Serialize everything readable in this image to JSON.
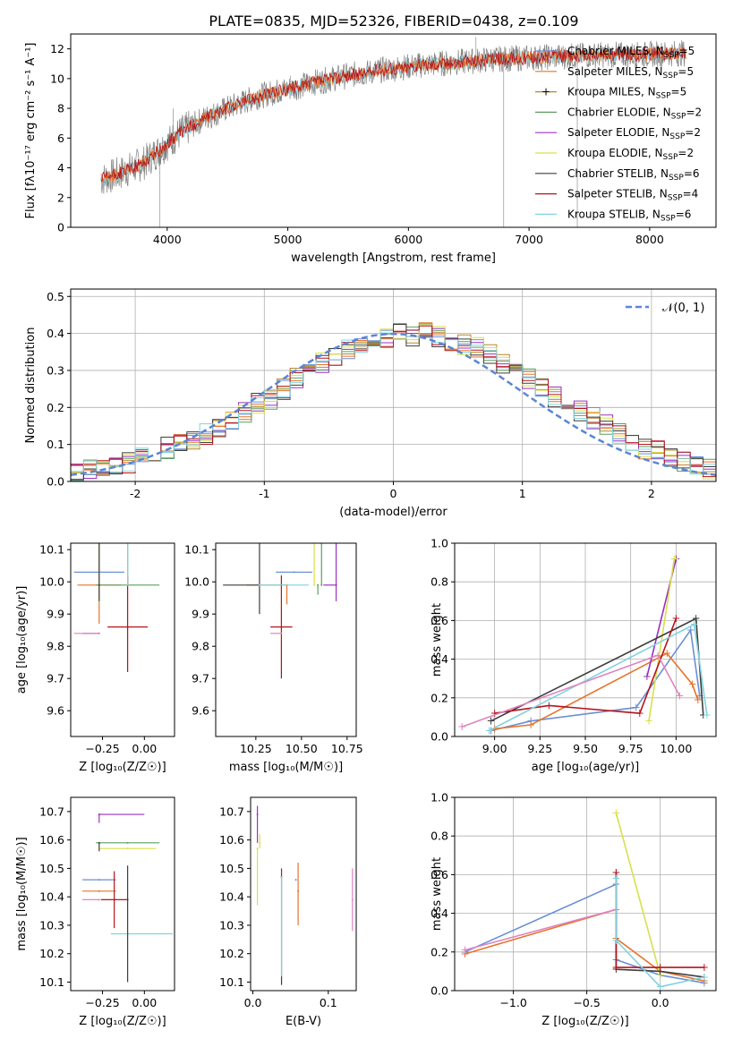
{
  "figure": {
    "title": "PLATE=0835, MJD=52326, FIBERID=0438, z=0.109"
  },
  "series_styles": [
    {
      "name": "Chabrier MILES",
      "nssp": "5",
      "color": "#6a8fd6"
    },
    {
      "name": "Salpeter MILES",
      "nssp": "5",
      "color": "#e7742a"
    },
    {
      "name": "Kroupa MILES",
      "nssp": "5",
      "color": "#b8862b"
    },
    {
      "name": "Chabrier ELODIE",
      "nssp": "2",
      "color": "#5f9e5f"
    },
    {
      "name": "Salpeter ELODIE",
      "nssp": "2",
      "color": "#9b30c0"
    },
    {
      "name": "Kroupa ELODIE",
      "nssp": "2",
      "color": "#d8e04a"
    },
    {
      "name": "Chabrier STELIB",
      "nssp": "6",
      "color": "#3e3e3e"
    },
    {
      "name": "Salpeter STELIB",
      "nssp": "4",
      "color": "#b5141c"
    },
    {
      "name": "Kroupa STELIB",
      "nssp": "6",
      "color": "#7fd3e0"
    }
  ],
  "chart_data": [
    {
      "id": "spectrum",
      "type": "line",
      "xlabel": "wavelength [Angstrom, rest frame]",
      "ylabel": "Flux [fλ10⁻¹⁷ erg cm⁻² s⁻¹ A⁻¹]",
      "xlim": [
        3200,
        8550
      ],
      "ylim": [
        0,
        13
      ],
      "xticks": [
        4000,
        5000,
        6000,
        7000,
        8000
      ],
      "yticks": [
        0,
        2,
        4,
        6,
        8,
        10,
        12
      ],
      "data_color": "#808080",
      "continuum": {
        "x": [
          3450,
          3600,
          3800,
          3950,
          4100,
          4300,
          4500,
          4750,
          5000,
          5250,
          5500,
          5800,
          6100,
          6400,
          6700,
          7000,
          7300,
          7600,
          7900,
          8200,
          8300
        ],
        "y": [
          3.2,
          3.6,
          4.3,
          5.3,
          6.3,
          7.3,
          8.0,
          8.8,
          9.3,
          9.8,
          10.2,
          10.6,
          10.9,
          11.1,
          11.3,
          11.4,
          11.5,
          11.6,
          11.6,
          11.7,
          11.7
        ]
      },
      "legend": "upper-right"
    },
    {
      "id": "residuals",
      "type": "line",
      "xlabel": "(data-model)/error",
      "ylabel": "Normed distribution",
      "xlim": [
        -2.5,
        2.5
      ],
      "ylim": [
        0,
        0.52
      ],
      "xticks": [
        -2,
        -1,
        0,
        1,
        2
      ],
      "yticks": [
        0.0,
        0.1,
        0.2,
        0.3,
        0.4,
        0.5
      ],
      "gaussian_label": "𝒩(0, 1)",
      "grid": true,
      "hist_base": [
        0.02,
        0.03,
        0.04,
        0.04,
        0.05,
        0.06,
        0.07,
        0.09,
        0.1,
        0.11,
        0.13,
        0.15,
        0.17,
        0.19,
        0.21,
        0.22,
        0.25,
        0.28,
        0.3,
        0.32,
        0.34,
        0.36,
        0.37,
        0.38,
        0.39,
        0.4,
        0.39,
        0.4,
        0.39,
        0.38,
        0.37,
        0.36,
        0.34,
        0.32,
        0.3,
        0.28,
        0.25,
        0.23,
        0.21,
        0.19,
        0.17,
        0.15,
        0.13,
        0.11,
        0.09,
        0.08,
        0.06,
        0.05,
        0.04,
        0.03
      ]
    },
    {
      "id": "age-vs-Z",
      "type": "scatter",
      "xlabel": "Z [log₁₀(Z/Z☉)]",
      "ylabel": "age  [log₁₀(age/yr)]",
      "xlim": [
        -0.44,
        0.18
      ],
      "ylim": [
        9.52,
        10.12
      ],
      "xticks": [
        -0.25,
        0.0
      ],
      "xticklabels": [
        "−0.25",
        "0.00"
      ],
      "yticks": [
        9.6,
        9.7,
        9.8,
        9.9,
        10.0,
        10.1
      ],
      "points": [
        {
          "x": -0.27,
          "y": 10.03,
          "xe": [
            0.15,
            0.15
          ],
          "ye": [
            0.07,
            0.07
          ],
          "c": 0
        },
        {
          "x": -0.27,
          "y": 9.99,
          "xe": [
            0.13,
            0.13
          ],
          "ye": [
            0.12,
            0.33
          ],
          "c": 1
        },
        {
          "x": -0.27,
          "y": 9.99,
          "xe": [
            0.0,
            0.0
          ],
          "ye": [
            0.05,
            0.3
          ],
          "c": 2
        },
        {
          "x": -0.1,
          "y": 9.99,
          "xe": [
            0.19,
            0.19
          ],
          "ye": [
            0.0,
            0.4
          ],
          "c": 3
        },
        {
          "x": -0.27,
          "y": 9.84,
          "xe": [
            0.1,
            0.0
          ],
          "ye": [
            0.0,
            0.0
          ],
          "c": 4
        },
        {
          "x": -0.27,
          "y": 9.99,
          "xe": [
            0.0,
            0.0
          ],
          "ye": [
            0.05,
            0.3
          ],
          "c": 5
        },
        {
          "x": -0.27,
          "y": 9.99,
          "xe": [
            0.0,
            0.0
          ],
          "ye": [
            0.05,
            0.35
          ],
          "c": 6
        },
        {
          "x": -0.1,
          "y": 9.86,
          "xe": [
            0.12,
            0.12
          ],
          "ye": [
            0.14,
            0.16
          ],
          "c": 7
        },
        {
          "x": -0.1,
          "y": 9.99,
          "xe": [
            0.0,
            0.0
          ],
          "ye": [
            0.0,
            0.43
          ],
          "c": 8
        },
        {
          "x": -0.27,
          "y": 9.84,
          "xe": [
            0.15,
            0.0
          ],
          "ye": [
            0.0,
            0.0
          ],
          "c": 4,
          "c_override": "#e083c0"
        }
      ]
    },
    {
      "id": "age-vs-mass",
      "type": "scatter",
      "xlabel": "mass [log₁₀(M/M☉)]",
      "xlim": [
        10.03,
        10.8
      ],
      "ylim": [
        9.52,
        10.12
      ],
      "xticks": [
        10.25,
        10.5,
        10.75
      ],
      "xticklabels": [
        "10.25",
        "10.50",
        "10.75"
      ],
      "yticks": [
        9.6,
        9.7,
        9.8,
        9.9,
        10.0,
        10.1
      ],
      "points": [
        {
          "x": 10.46,
          "y": 10.03,
          "xe": [
            0.1,
            0.1
          ],
          "ye": [
            0.0,
            0.0
          ],
          "c": 0
        },
        {
          "x": 10.42,
          "y": 9.99,
          "xe": [
            0.22,
            0.0
          ],
          "ye": [
            0.06,
            0.0
          ],
          "c": 1
        },
        {
          "x": 10.69,
          "y": 9.99,
          "xe": [
            0.0,
            0.0
          ],
          "ye": [
            0.0,
            0.0
          ],
          "c": 2
        },
        {
          "x": 10.59,
          "y": 9.99,
          "xe": [
            0.0,
            0.0
          ],
          "ye": [
            0.03,
            0.0
          ],
          "c": 3
        },
        {
          "x": 10.69,
          "y": 9.99,
          "xe": [
            0.07,
            0.0
          ],
          "ye": [
            0.05,
            0.29
          ],
          "c": 4
        },
        {
          "x": 10.57,
          "y": 9.99,
          "xe": [
            0.0,
            0.0
          ],
          "ye": [
            0.0,
            0.32
          ],
          "c": 5
        },
        {
          "x": 10.27,
          "y": 9.99,
          "xe": [
            0.2,
            0.0
          ],
          "ye": [
            0.09,
            0.45
          ],
          "c": 6
        },
        {
          "x": 10.39,
          "y": 9.86,
          "xe": [
            0.06,
            0.06
          ],
          "ye": [
            0.16,
            0.16
          ],
          "c": 7
        },
        {
          "x": 10.27,
          "y": 9.99,
          "xe": [
            0.0,
            0.27
          ],
          "ye": [
            0.0,
            0.0
          ],
          "c": 8
        },
        {
          "x": 10.39,
          "y": 9.84,
          "xe": [
            0.06,
            0.0
          ],
          "ye": [
            0.0,
            0.0
          ],
          "c": 4,
          "c_override": "#e083c0"
        },
        {
          "x": 10.61,
          "y": 9.99,
          "xe": [
            0.0,
            0.0
          ],
          "ye": [
            0.0,
            0.35
          ],
          "c": 3
        }
      ]
    },
    {
      "id": "mass-weight-vs-age",
      "type": "line",
      "xlabel": "age  [log₁₀(age/yr)]",
      "ylabel": "mass weight",
      "xlim": [
        8.78,
        10.22
      ],
      "ylim": [
        0,
        1
      ],
      "xticks": [
        9.0,
        9.25,
        9.5,
        9.75,
        10.0
      ],
      "xticklabels": [
        "9.00",
        "9.25",
        "9.50",
        "9.75",
        "10.00"
      ],
      "yticks": [
        0.0,
        0.2,
        0.4,
        0.6,
        0.8,
        1.0
      ],
      "grid": true,
      "lines": [
        {
          "c": 0,
          "x": [
            8.98,
            9.2,
            9.78,
            10.08,
            10.13
          ],
          "y": [
            0.03,
            0.08,
            0.15,
            0.55,
            0.21
          ]
        },
        {
          "c": 1,
          "x": [
            9.0,
            9.2,
            9.95,
            10.09,
            10.12
          ],
          "y": [
            0.04,
            0.06,
            0.43,
            0.27,
            0.19
          ]
        },
        {
          "c": 4,
          "x": [
            9.84,
            10.0
          ],
          "y": [
            0.31,
            0.92
          ]
        },
        {
          "c": 5,
          "x": [
            9.85,
            9.99
          ],
          "y": [
            0.08,
            0.92
          ]
        },
        {
          "c": 6,
          "x": [
            8.98,
            10.11,
            10.15
          ],
          "y": [
            0.08,
            0.61,
            0.11
          ]
        },
        {
          "c": 7,
          "x": [
            9.0,
            9.3,
            9.8,
            10.0
          ],
          "y": [
            0.12,
            0.16,
            0.12,
            0.61
          ]
        },
        {
          "c": 8,
          "x": [
            8.97,
            10.1,
            10.17
          ],
          "y": [
            0.03,
            0.58,
            0.11
          ]
        },
        {
          "c": 4,
          "c_override": "#e083c0",
          "x": [
            8.82,
            9.9,
            10.02
          ],
          "y": [
            0.05,
            0.42,
            0.21
          ]
        }
      ]
    },
    {
      "id": "mass-vs-Z",
      "type": "scatter",
      "xlabel": "Z [log₁₀(Z/Z☉)]",
      "ylabel": "mass [log₁₀(M/M☉)]",
      "xlim": [
        -0.44,
        0.18
      ],
      "ylim": [
        10.07,
        10.75
      ],
      "xticks": [
        -0.25,
        0.0
      ],
      "xticklabels": [
        "−0.25",
        "0.00"
      ],
      "yticks": [
        10.1,
        10.2,
        10.3,
        10.4,
        10.5,
        10.6,
        10.7
      ],
      "points": [
        {
          "x": -0.27,
          "y": 10.46,
          "xe": [
            0.1,
            0.1
          ],
          "ye": [
            0.0,
            0.0
          ],
          "c": 0
        },
        {
          "x": -0.27,
          "y": 10.42,
          "xe": [
            0.1,
            0.1
          ],
          "ye": [
            0.0,
            0.0
          ],
          "c": 1
        },
        {
          "x": -0.27,
          "y": 10.69,
          "xe": [
            0.0,
            0.0
          ],
          "ye": [
            0.0,
            0.0
          ],
          "c": 2
        },
        {
          "x": -0.1,
          "y": 10.59,
          "xe": [
            0.19,
            0.19
          ],
          "ye": [
            0.0,
            0.0
          ],
          "c": 3
        },
        {
          "x": -0.27,
          "y": 10.69,
          "xe": [
            0.0,
            0.27
          ],
          "ye": [
            0.03,
            0.0
          ],
          "c": 4
        },
        {
          "x": -0.1,
          "y": 10.57,
          "xe": [
            0.17,
            0.17
          ],
          "ye": [
            0.0,
            0.0
          ],
          "c": 5
        },
        {
          "x": -0.27,
          "y": 10.59,
          "xe": [
            0.0,
            0.0
          ],
          "ye": [
            0.03,
            0.0
          ],
          "c": 6
        },
        {
          "x": -0.18,
          "y": 10.39,
          "xe": [
            0.08,
            0.08
          ],
          "ye": [
            0.1,
            0.1
          ],
          "c": 7
        },
        {
          "x": -0.1,
          "y": 10.27,
          "xe": [
            0.1,
            0.27
          ],
          "ye": [
            0.0,
            0.0
          ],
          "c": 8
        },
        {
          "x": -0.27,
          "y": 10.39,
          "xe": [
            0.1,
            0.0
          ],
          "ye": [
            0.0,
            0.0
          ],
          "c": 4,
          "c_override": "#e083c0"
        },
        {
          "x": -0.1,
          "y": 10.39,
          "xe": [
            0.0,
            0.0
          ],
          "ye": [
            0.29,
            0.12
          ],
          "c": 6
        }
      ]
    },
    {
      "id": "mass-vs-ebv",
      "type": "scatter",
      "xlabel": "E(B-V)",
      "xlim": [
        -0.003,
        0.137
      ],
      "ylim": [
        10.07,
        10.75
      ],
      "xticks": [
        0.0,
        0.1
      ],
      "xticklabels": [
        "0.0",
        "0.1"
      ],
      "yticks": [
        10.1,
        10.2,
        10.3,
        10.4,
        10.5,
        10.6,
        10.7
      ],
      "points": [
        {
          "x": 0.057,
          "y": 10.46,
          "ye": [
            0.0,
            0.0
          ],
          "c": 0
        },
        {
          "x": 0.06,
          "y": 10.42,
          "ye": [
            0.12,
            0.1
          ],
          "c": 1
        },
        {
          "x": 0.006,
          "y": 10.69,
          "ye": [
            0.1,
            0.03
          ],
          "c": 4
        },
        {
          "x": 0.006,
          "y": 10.57,
          "ye": [
            0.2,
            0.0
          ],
          "c": 5
        },
        {
          "x": 0.038,
          "y": 10.47,
          "ye": [
            0.38,
            0.0
          ],
          "c": 6
        },
        {
          "x": 0.038,
          "y": 10.47,
          "ye": [
            0.0,
            0.03
          ],
          "c": 7
        },
        {
          "x": 0.038,
          "y": 10.47,
          "ye": [
            0.35,
            0.0
          ],
          "c": 8
        },
        {
          "x": 0.132,
          "y": 10.39,
          "ye": [
            0.11,
            0.11
          ],
          "c": 4,
          "c_override": "#e083c0"
        },
        {
          "x": 0.009,
          "y": 10.59,
          "ye": [
            0.02,
            0.03
          ],
          "c": 5
        }
      ]
    },
    {
      "id": "mass-weight-vs-Z",
      "type": "line",
      "xlabel": "Z [log₁₀(Z/Z☉)]",
      "ylabel": "mass weight",
      "xlim": [
        -1.4,
        0.38
      ],
      "ylim": [
        0,
        1
      ],
      "xticks": [
        -1.0,
        -0.5,
        0.0
      ],
      "xticklabels": [
        "−1.0",
        "−0.5",
        "0.0"
      ],
      "yticks": [
        0.0,
        0.2,
        0.4,
        0.6,
        0.8,
        1.0
      ],
      "grid": true,
      "lines": [
        {
          "c": 0,
          "x": [
            -1.33,
            -0.3,
            -0.3,
            0.0,
            0.3
          ],
          "y": [
            0.2,
            0.55,
            0.16,
            0.08,
            0.04
          ]
        },
        {
          "c": 1,
          "x": [
            -1.33,
            -0.3,
            -0.3,
            0.0,
            0.3
          ],
          "y": [
            0.19,
            0.42,
            0.27,
            0.1,
            0.05
          ]
        },
        {
          "c": 5,
          "x": [
            -0.3,
            0.0
          ],
          "y": [
            0.92,
            0.08
          ]
        },
        {
          "c": 4,
          "c_override": "#e083c0",
          "x": [
            -1.33,
            -0.3
          ],
          "y": [
            0.21,
            0.42
          ]
        },
        {
          "c": 6,
          "x": [
            -0.3,
            -0.3,
            0.0,
            0.3
          ],
          "y": [
            0.61,
            0.11,
            0.1,
            0.07
          ]
        },
        {
          "c": 7,
          "x": [
            -0.3,
            -0.3,
            0.0,
            0.3
          ],
          "y": [
            0.61,
            0.12,
            0.12,
            0.12
          ]
        },
        {
          "c": 8,
          "x": [
            -0.3,
            -0.3,
            0.0,
            0.3
          ],
          "y": [
            0.58,
            0.26,
            0.02,
            0.07
          ]
        }
      ]
    }
  ]
}
